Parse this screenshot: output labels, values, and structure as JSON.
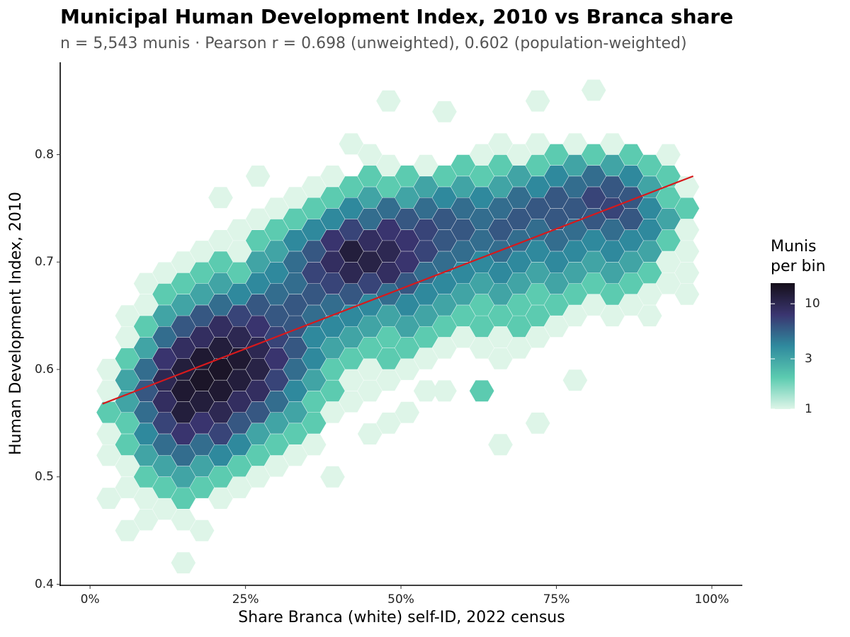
{
  "chart_data": {
    "type": "hexbin",
    "title": "Municipal Human Development Index, 2010 vs Branca share",
    "subtitle": "n = 5,543 munis · Pearson r = 0.698 (unweighted), 0.602 (population-weighted)",
    "x_label": "Share Branca (white) self-ID, 2022 census",
    "y_label": "Human Development Index, 2010",
    "xlim": [
      -4.8,
      104.9
    ],
    "ylim": [
      0.399,
      0.886
    ],
    "xticks": [
      {
        "value": 0,
        "label": "0%"
      },
      {
        "value": 25,
        "label": "25%"
      },
      {
        "value": 50,
        "label": "50%"
      },
      {
        "value": 75,
        "label": "75%"
      },
      {
        "value": 100,
        "label": "100%"
      }
    ],
    "yticks": [
      0.4,
      0.5,
      0.6,
      0.7,
      0.8
    ],
    "legend_title": [
      "Munis",
      "per bin"
    ],
    "color_scale": {
      "log": true,
      "lim": [
        1,
        15.7
      ],
      "ticks": [
        1,
        3,
        10
      ],
      "colors": [
        "#def5e8",
        "#5ccbb0",
        "#2f8a9e",
        "#3a3570",
        "#150f1a"
      ]
    },
    "fit": {
      "color": "#d7191c",
      "x": [
        2,
        97
      ],
      "y": [
        0.568,
        0.78
      ]
    },
    "bins": [
      {
        "x": 3,
        "y": [
          0.48,
          0.52,
          0.54,
          0.56,
          0.58,
          0.6
        ],
        "count": [
          1,
          1,
          1,
          2,
          1,
          1
        ]
      },
      {
        "x": 6,
        "y": [
          0.45,
          0.49,
          0.51,
          0.53,
          0.55,
          0.57,
          0.59,
          0.61,
          0.63,
          0.65
        ],
        "count": [
          1,
          1,
          1,
          2,
          2,
          3,
          3,
          2,
          1,
          1
        ]
      },
      {
        "x": 9,
        "y": [
          0.46,
          0.48,
          0.5,
          0.52,
          0.54,
          0.56,
          0.58,
          0.6,
          0.62,
          0.64,
          0.66,
          0.68
        ],
        "count": [
          1,
          1,
          2,
          3,
          4,
          5,
          6,
          5,
          3,
          2,
          1,
          1
        ]
      },
      {
        "x": 12,
        "y": [
          0.47,
          0.49,
          0.51,
          0.53,
          0.55,
          0.57,
          0.59,
          0.61,
          0.63,
          0.65,
          0.67,
          0.69
        ],
        "count": [
          1,
          2,
          3,
          5,
          7,
          9,
          10,
          8,
          5,
          3,
          2,
          1
        ]
      },
      {
        "x": 15,
        "y": [
          0.42,
          0.46,
          0.48,
          0.5,
          0.52,
          0.54,
          0.56,
          0.58,
          0.6,
          0.62,
          0.64,
          0.66,
          0.68,
          0.7
        ],
        "count": [
          1,
          1,
          2,
          3,
          5,
          8,
          12,
          13,
          12,
          9,
          6,
          3,
          2,
          1
        ]
      },
      {
        "x": 18,
        "y": [
          0.45,
          0.49,
          0.51,
          0.53,
          0.55,
          0.57,
          0.59,
          0.61,
          0.63,
          0.65,
          0.67,
          0.69,
          0.71
        ],
        "count": [
          1,
          2,
          3,
          5,
          8,
          12,
          14,
          13,
          9,
          6,
          3,
          2,
          1
        ]
      },
      {
        "x": 21,
        "y": [
          0.48,
          0.5,
          0.52,
          0.54,
          0.56,
          0.58,
          0.6,
          0.62,
          0.64,
          0.66,
          0.68,
          0.7,
          0.72,
          0.76
        ],
        "count": [
          1,
          2,
          4,
          7,
          10,
          13,
          14,
          12,
          9,
          5,
          3,
          2,
          1,
          1
        ]
      },
      {
        "x": 24,
        "y": [
          0.49,
          0.51,
          0.53,
          0.55,
          0.57,
          0.59,
          0.61,
          0.63,
          0.65,
          0.67,
          0.69,
          0.71,
          0.73
        ],
        "count": [
          1,
          2,
          4,
          6,
          9,
          12,
          13,
          10,
          7,
          4,
          2,
          1,
          1
        ]
      },
      {
        "x": 27,
        "y": [
          0.5,
          0.52,
          0.54,
          0.56,
          0.58,
          0.6,
          0.62,
          0.64,
          0.66,
          0.68,
          0.7,
          0.72,
          0.74,
          0.78
        ],
        "count": [
          1,
          2,
          3,
          6,
          9,
          11,
          10,
          8,
          6,
          4,
          3,
          2,
          1,
          1
        ]
      },
      {
        "x": 30,
        "y": [
          0.51,
          0.53,
          0.55,
          0.57,
          0.59,
          0.61,
          0.63,
          0.65,
          0.67,
          0.69,
          0.71,
          0.73,
          0.75
        ],
        "count": [
          1,
          2,
          3,
          5,
          7,
          8,
          7,
          6,
          5,
          4,
          3,
          2,
          1
        ]
      },
      {
        "x": 33,
        "y": [
          0.52,
          0.54,
          0.56,
          0.58,
          0.6,
          0.62,
          0.64,
          0.66,
          0.68,
          0.7,
          0.72,
          0.74,
          0.76
        ],
        "count": [
          1,
          2,
          3,
          4,
          5,
          6,
          6,
          6,
          5,
          5,
          4,
          2,
          1
        ]
      },
      {
        "x": 36,
        "y": [
          0.53,
          0.55,
          0.57,
          0.59,
          0.61,
          0.63,
          0.65,
          0.67,
          0.69,
          0.71,
          0.73,
          0.75,
          0.77
        ],
        "count": [
          1,
          2,
          2,
          3,
          4,
          4,
          5,
          6,
          7,
          6,
          4,
          2,
          1
        ]
      },
      {
        "x": 39,
        "y": [
          0.5,
          0.56,
          0.58,
          0.6,
          0.62,
          0.64,
          0.66,
          0.68,
          0.7,
          0.72,
          0.74,
          0.76,
          0.78
        ],
        "count": [
          1,
          1,
          2,
          2,
          3,
          4,
          5,
          7,
          9,
          8,
          4,
          2,
          1
        ]
      },
      {
        "x": 42,
        "y": [
          0.57,
          0.59,
          0.61,
          0.63,
          0.65,
          0.67,
          0.69,
          0.71,
          0.73,
          0.75,
          0.77,
          0.81
        ],
        "count": [
          1,
          1,
          2,
          3,
          4,
          6,
          10,
          12,
          7,
          4,
          2,
          1
        ]
      },
      {
        "x": 45,
        "y": [
          0.54,
          0.58,
          0.6,
          0.62,
          0.64,
          0.66,
          0.68,
          0.7,
          0.72,
          0.74,
          0.76,
          0.78,
          0.8
        ],
        "count": [
          1,
          1,
          1,
          2,
          3,
          4,
          7,
          11,
          9,
          5,
          3,
          2,
          1
        ]
      },
      {
        "x": 48,
        "y": [
          0.55,
          0.59,
          0.61,
          0.63,
          0.65,
          0.67,
          0.69,
          0.71,
          0.73,
          0.75,
          0.77,
          0.79,
          0.85
        ],
        "count": [
          1,
          1,
          2,
          2,
          3,
          5,
          9,
          10,
          8,
          5,
          2,
          1,
          1
        ]
      },
      {
        "x": 51,
        "y": [
          0.56,
          0.6,
          0.62,
          0.64,
          0.66,
          0.68,
          0.7,
          0.72,
          0.74,
          0.76,
          0.78
        ],
        "count": [
          1,
          1,
          2,
          3,
          4,
          6,
          8,
          8,
          6,
          3,
          2
        ]
      },
      {
        "x": 54,
        "y": [
          0.58,
          0.61,
          0.63,
          0.65,
          0.67,
          0.69,
          0.71,
          0.73,
          0.75,
          0.77,
          0.79
        ],
        "count": [
          1,
          1,
          2,
          3,
          4,
          5,
          7,
          7,
          5,
          3,
          1
        ]
      },
      {
        "x": 57,
        "y": [
          0.58,
          0.62,
          0.64,
          0.66,
          0.68,
          0.7,
          0.72,
          0.74,
          0.76,
          0.78,
          0.84
        ],
        "count": [
          1,
          1,
          2,
          3,
          4,
          5,
          6,
          6,
          4,
          2,
          1
        ]
      },
      {
        "x": 60,
        "y": [
          0.63,
          0.65,
          0.67,
          0.69,
          0.71,
          0.73,
          0.75,
          0.77,
          0.79
        ],
        "count": [
          1,
          2,
          3,
          4,
          5,
          6,
          5,
          3,
          2
        ]
      },
      {
        "x": 63,
        "y": [
          0.58,
          0.62,
          0.64,
          0.66,
          0.68,
          0.7,
          0.72,
          0.74,
          0.76,
          0.78,
          0.8
        ],
        "count": [
          2,
          1,
          2,
          2,
          3,
          4,
          5,
          5,
          4,
          2,
          1
        ]
      },
      {
        "x": 66,
        "y": [
          0.53,
          0.61,
          0.63,
          0.65,
          0.67,
          0.69,
          0.71,
          0.73,
          0.75,
          0.77,
          0.79,
          0.81
        ],
        "count": [
          1,
          1,
          1,
          2,
          3,
          4,
          5,
          6,
          5,
          3,
          2,
          1
        ]
      },
      {
        "x": 69,
        "y": [
          0.62,
          0.64,
          0.66,
          0.68,
          0.7,
          0.72,
          0.74,
          0.76,
          0.78,
          0.8
        ],
        "count": [
          1,
          2,
          2,
          3,
          4,
          5,
          6,
          5,
          3,
          1
        ]
      },
      {
        "x": 72,
        "y": [
          0.55,
          0.63,
          0.65,
          0.67,
          0.69,
          0.71,
          0.73,
          0.75,
          0.77,
          0.79,
          0.81,
          0.85
        ],
        "count": [
          1,
          1,
          2,
          2,
          3,
          4,
          5,
          6,
          4,
          2,
          1,
          1
        ]
      },
      {
        "x": 75,
        "y": [
          0.64,
          0.66,
          0.68,
          0.7,
          0.72,
          0.74,
          0.76,
          0.78,
          0.8
        ],
        "count": [
          1,
          2,
          3,
          4,
          5,
          6,
          6,
          4,
          2
        ]
      },
      {
        "x": 78,
        "y": [
          0.59,
          0.65,
          0.67,
          0.69,
          0.71,
          0.73,
          0.75,
          0.77,
          0.79,
          0.81
        ],
        "count": [
          1,
          1,
          2,
          3,
          4,
          5,
          6,
          5,
          3,
          1
        ]
      },
      {
        "x": 81,
        "y": [
          0.66,
          0.68,
          0.7,
          0.72,
          0.74,
          0.76,
          0.78,
          0.8,
          0.86
        ],
        "count": [
          1,
          2,
          3,
          4,
          6,
          7,
          5,
          2,
          1
        ]
      },
      {
        "x": 84,
        "y": [
          0.65,
          0.67,
          0.69,
          0.71,
          0.73,
          0.75,
          0.77,
          0.79,
          0.81
        ],
        "count": [
          1,
          2,
          3,
          4,
          5,
          7,
          6,
          3,
          1
        ]
      },
      {
        "x": 87,
        "y": [
          0.66,
          0.68,
          0.7,
          0.72,
          0.74,
          0.76,
          0.78,
          0.8
        ],
        "count": [
          1,
          2,
          3,
          4,
          6,
          6,
          4,
          2
        ]
      },
      {
        "x": 90,
        "y": [
          0.65,
          0.67,
          0.69,
          0.71,
          0.73,
          0.75,
          0.77,
          0.79
        ],
        "count": [
          1,
          1,
          2,
          3,
          4,
          4,
          3,
          2
        ]
      },
      {
        "x": 93,
        "y": [
          0.68,
          0.7,
          0.72,
          0.74,
          0.76,
          0.78,
          0.8
        ],
        "count": [
          1,
          1,
          2,
          3,
          2,
          2,
          1
        ]
      },
      {
        "x": 96,
        "y": [
          0.67,
          0.69,
          0.71,
          0.73,
          0.75,
          0.77
        ],
        "count": [
          1,
          1,
          1,
          1,
          2,
          1
        ]
      }
    ]
  }
}
